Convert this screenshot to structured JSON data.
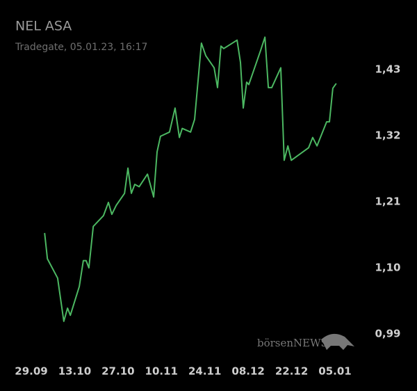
{
  "chart_data": {
    "type": "line",
    "title": "NEL ASA",
    "subtitle": "Tradegate, 05.01.23, 16:17",
    "watermark": "börsenNEWS",
    "x": [
      4.3,
      5.2,
      8.5,
      10.5,
      11.7,
      12.6,
      15.5,
      16.8,
      17.7,
      18.6,
      20.0,
      23.3,
      24.9,
      26.0,
      27.4,
      30.1,
      31.2,
      32.3,
      33.4,
      34.8,
      37.5,
      39.5,
      40.6,
      41.7,
      44.6,
      46.4,
      47.8,
      48.7,
      51.4,
      52.7,
      54.9,
      56.3,
      59.0,
      60.1,
      61.2,
      62.1,
      66.4,
      67.5,
      68.4,
      69.5,
      70.2,
      74.0,
      75.4,
      76.5,
      77.6,
      80.5,
      81.6,
      82.8,
      83.9,
      89.5,
      90.8,
      92.2,
      95.3,
      96.2,
      97.3,
      98.4
    ],
    "series": [
      {
        "color": "#4cb862",
        "values": [
          1.158,
          1.115,
          1.083,
          1.011,
          1.033,
          1.021,
          1.069,
          1.112,
          1.112,
          1.1,
          1.169,
          1.187,
          1.209,
          1.189,
          1.204,
          1.224,
          1.266,
          1.224,
          1.239,
          1.235,
          1.256,
          1.218,
          1.293,
          1.319,
          1.326,
          1.366,
          1.317,
          1.332,
          1.326,
          1.347,
          1.474,
          1.453,
          1.433,
          1.4,
          1.469,
          1.465,
          1.479,
          1.442,
          1.366,
          1.409,
          1.405,
          1.462,
          1.484,
          1.4,
          1.4,
          1.433,
          1.279,
          1.303,
          1.279,
          1.3,
          1.317,
          1.303,
          1.343,
          1.343,
          1.399,
          1.407
        ]
      }
    ],
    "xlim": [
      0,
      98
    ],
    "xticks": [
      {
        "value": 0,
        "label": "29.09"
      },
      {
        "value": 14,
        "label": "13.10"
      },
      {
        "value": 28,
        "label": "27.10"
      },
      {
        "value": 42,
        "label": "10.11"
      },
      {
        "value": 56,
        "label": "24.11"
      },
      {
        "value": 70,
        "label": "08.12"
      },
      {
        "value": 84,
        "label": "22.12"
      },
      {
        "value": 98,
        "label": "05.01"
      }
    ],
    "ylim": [
      0.99,
      1.43
    ],
    "yticks": [
      {
        "value": 0.99,
        "label": "0,99"
      },
      {
        "value": 1.1,
        "label": "1,10"
      },
      {
        "value": 1.21,
        "label": "1,21"
      },
      {
        "value": 1.32,
        "label": "1,32"
      },
      {
        "value": 1.43,
        "label": "1,43"
      }
    ],
    "grid": false
  }
}
